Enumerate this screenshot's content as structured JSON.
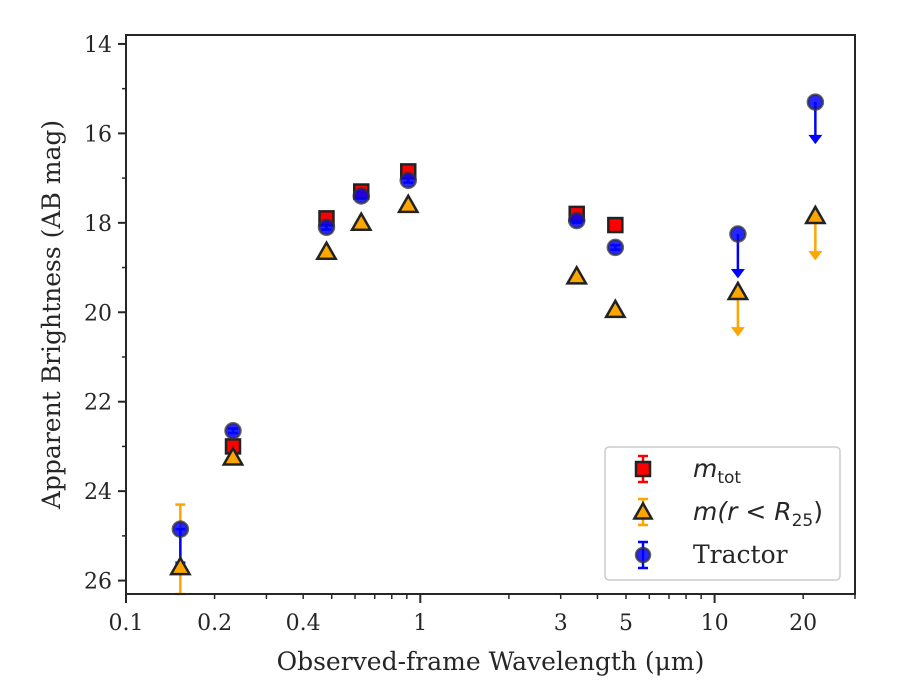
{
  "chart_data": {
    "type": "scatter",
    "title": "",
    "xlabel": "Observed-frame Wavelength (μm)",
    "ylabel": "Apparent Brightness (AB mag)",
    "xscale": "log",
    "xlim": [
      0.1,
      30
    ],
    "ylim": [
      26.3,
      13.8
    ],
    "y_inverted": true,
    "grid": false,
    "xticks": [
      0.1,
      0.2,
      0.4,
      1,
      3,
      5,
      10,
      20
    ],
    "xtick_labels": [
      "0.1",
      "0.2",
      "0.4",
      "1",
      "3",
      "5",
      "10",
      "20"
    ],
    "yticks": [
      14,
      16,
      18,
      20,
      22,
      24,
      26
    ],
    "ytick_labels": [
      "14",
      "16",
      "18",
      "20",
      "22",
      "24",
      "26"
    ],
    "legend": {
      "position": "lower right",
      "entries": [
        {
          "label": "m",
          "sub": "tot",
          "marker": "square",
          "color": "#ff0000"
        },
        {
          "label": "m(r < R",
          "sub": "25",
          "suffix": ")",
          "marker": "triangle",
          "color": "#ffa500"
        },
        {
          "label": "Tractor",
          "marker": "circle",
          "color": "#0000ff"
        }
      ]
    },
    "series": [
      {
        "name": "m_tot",
        "marker": "square",
        "color": "#ff0000",
        "edgecolor": "#222222",
        "points": [
          {
            "x": 0.231,
            "y": 23.0,
            "err": 0.08
          },
          {
            "x": 0.48,
            "y": 17.9,
            "err": 0.05
          },
          {
            "x": 0.63,
            "y": 17.3,
            "err": 0.05
          },
          {
            "x": 0.91,
            "y": 16.85,
            "err": 0.05
          },
          {
            "x": 3.4,
            "y": 17.8,
            "err": 0.05
          },
          {
            "x": 4.6,
            "y": 18.05,
            "err": 0.05
          }
        ]
      },
      {
        "name": "m(r < R25)",
        "marker": "triangle",
        "color": "#ffa500",
        "edgecolor": "#222222",
        "points": [
          {
            "x": 0.153,
            "y": 25.7,
            "err_low": 24.3,
            "err_high": 26.3
          },
          {
            "x": 0.231,
            "y": 23.25,
            "err": 0.05
          },
          {
            "x": 0.48,
            "y": 18.65,
            "err": 0.05
          },
          {
            "x": 0.63,
            "y": 18.0,
            "err": 0.05
          },
          {
            "x": 0.91,
            "y": 17.6,
            "err": 0.05
          },
          {
            "x": 3.4,
            "y": 19.2,
            "err": 0.05
          },
          {
            "x": 4.6,
            "y": 19.95,
            "err": 0.05
          },
          {
            "x": 12.0,
            "y": 19.55,
            "limit_to": 20.5
          },
          {
            "x": 22.0,
            "y": 17.85,
            "limit_to": 18.8
          }
        ]
      },
      {
        "name": "Tractor",
        "marker": "circle",
        "color": "#0000ff",
        "edgecolor": "#333333",
        "points": [
          {
            "x": 0.153,
            "y": 24.85,
            "err_low": 24.85,
            "err_high": 25.6
          },
          {
            "x": 0.231,
            "y": 22.65,
            "err": 0.05
          },
          {
            "x": 0.48,
            "y": 18.1,
            "err": 0.05
          },
          {
            "x": 0.63,
            "y": 17.4,
            "err": 0.05
          },
          {
            "x": 0.91,
            "y": 17.05,
            "err": 0.05
          },
          {
            "x": 3.4,
            "y": 17.95,
            "err": 0.05
          },
          {
            "x": 4.6,
            "y": 18.55,
            "err": 0.05
          },
          {
            "x": 12.0,
            "y": 18.25,
            "limit_to": 19.2
          },
          {
            "x": 22.0,
            "y": 15.3,
            "limit_to": 16.2
          }
        ]
      }
    ]
  }
}
